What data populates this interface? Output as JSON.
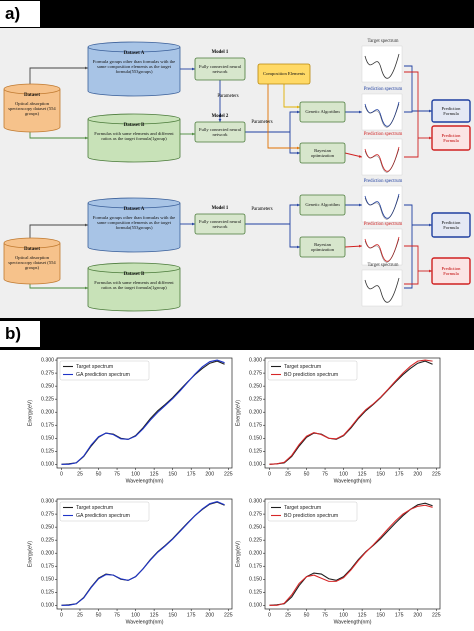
{
  "panel_labels": [
    "a)",
    "b)"
  ],
  "diagram": {
    "nodes": [
      {
        "title": "Dataset",
        "text": "Optical absorption spectroscopy dataset (554 groups)"
      },
      {
        "title": "Dataset A",
        "text": "Formula groups other than formulas with the same composition elements as the target formula(553groups)"
      },
      {
        "title": "Dataset B",
        "text": "Formulas with same elements and different ratios as the target formula(1group)"
      },
      {
        "title": "Model 1",
        "text": "Fully connected neural network"
      },
      {
        "title": "Model 2",
        "text": "Fully connected neural network"
      },
      {
        "text": "Composition Elements"
      },
      {
        "text": "Genetic Algorithm"
      },
      {
        "text": "Bayesian optimization"
      },
      {
        "text": "Prediction Formula"
      },
      {
        "text": "Prediction Formula"
      },
      {
        "title": "Dataset",
        "text": "Optical absorption spectroscopy dataset (554 groups)"
      },
      {
        "title": "Dataset A",
        "text": "Formula groups other than formulas with the same composition elements as the target formula(553groups)"
      },
      {
        "title": "Dataset B",
        "text": "Formulas with same elements and different ratios as the target formula(1group)"
      },
      {
        "title": "Model 1",
        "text": "Fully connected neural network"
      },
      {
        "text": "Genetic Algorithm"
      },
      {
        "text": "Bayesian optimization"
      },
      {
        "text": "Prediction Formula"
      },
      {
        "text": "Prediction Formula"
      }
    ],
    "edge_labels": [
      "Parameters",
      "Parameters",
      "Parameters"
    ],
    "spectra": [
      "Target spectrum",
      "Prediction spectrum",
      "Prediction spectrum",
      "Prediction spectrum",
      "Prediction spectrum",
      "Target spectrum"
    ]
  },
  "chart_data": [
    {
      "type": "line",
      "xlabel": "Wavelength(nm)",
      "ylabel": "Energy(eV)",
      "legend": "upper left",
      "x": [
        0,
        10,
        20,
        30,
        40,
        50,
        60,
        70,
        80,
        90,
        100,
        110,
        120,
        130,
        140,
        150,
        160,
        170,
        180,
        190,
        200,
        210,
        220
      ],
      "series": [
        {
          "name": "Target spectrum",
          "color": "#1f1f1f",
          "values": [
            0.1,
            0.101,
            0.103,
            0.115,
            0.135,
            0.152,
            0.16,
            0.158,
            0.15,
            0.148,
            0.155,
            0.17,
            0.188,
            0.203,
            0.215,
            0.228,
            0.243,
            0.258,
            0.272,
            0.284,
            0.294,
            0.298,
            0.292
          ]
        },
        {
          "name": "GA prediction spectrum",
          "color": "#1f35c8",
          "values": [
            0.1,
            0.1,
            0.103,
            0.116,
            0.137,
            0.153,
            0.16,
            0.157,
            0.149,
            0.148,
            0.154,
            0.168,
            0.185,
            0.2,
            0.213,
            0.226,
            0.241,
            0.257,
            0.273,
            0.287,
            0.297,
            0.3,
            0.295
          ]
        }
      ],
      "xlim": [
        -6,
        230
      ],
      "ylim": [
        0.093,
        0.304
      ],
      "xticks": [
        0,
        25,
        50,
        75,
        100,
        125,
        150,
        175,
        200,
        225
      ],
      "yticks": [
        {
          "value": 0.1,
          "label": "0.100"
        },
        0.125,
        {
          "value": 0.15,
          "label": "0.150"
        },
        0.175,
        {
          "value": 0.2,
          "label": "0.200"
        },
        0.225,
        {
          "value": 0.25,
          "label": "0.250"
        },
        0.275,
        {
          "value": 0.3,
          "label": "0.300"
        }
      ]
    },
    {
      "type": "line",
      "xlabel": "Wavelength(nm)",
      "ylabel": "Energy(eV)",
      "legend": "upper left",
      "x": [
        0,
        10,
        20,
        30,
        40,
        50,
        60,
        70,
        80,
        90,
        100,
        110,
        120,
        130,
        140,
        150,
        160,
        170,
        180,
        190,
        200,
        210,
        220
      ],
      "series": [
        {
          "name": "Target spectrum",
          "color": "#1f1f1f",
          "values": [
            0.1,
            0.101,
            0.103,
            0.115,
            0.135,
            0.152,
            0.16,
            0.158,
            0.15,
            0.148,
            0.155,
            0.17,
            0.188,
            0.203,
            0.215,
            0.228,
            0.243,
            0.258,
            0.272,
            0.284,
            0.294,
            0.298,
            0.292
          ]
        },
        {
          "name": "BO prediction spectrum",
          "color": "#d62728",
          "values": [
            0.1,
            0.101,
            0.104,
            0.117,
            0.138,
            0.154,
            0.161,
            0.157,
            0.15,
            0.149,
            0.156,
            0.172,
            0.19,
            0.205,
            0.216,
            0.229,
            0.244,
            0.26,
            0.275,
            0.288,
            0.298,
            0.3,
            0.298
          ]
        }
      ],
      "xlim": [
        -6,
        230
      ],
      "ylim": [
        0.093,
        0.304
      ],
      "xticks": [
        0,
        25,
        50,
        75,
        100,
        125,
        150,
        175,
        200,
        225
      ],
      "yticks": [
        {
          "value": 0.1,
          "label": "0.100"
        },
        0.125,
        {
          "value": 0.15,
          "label": "0.150"
        },
        0.175,
        {
          "value": 0.2,
          "label": "0.200"
        },
        0.225,
        {
          "value": 0.25,
          "label": "0.250"
        },
        0.275,
        {
          "value": 0.3,
          "label": "0.300"
        }
      ]
    },
    {
      "type": "line",
      "xlabel": "Wavelength(nm)",
      "ylabel": "Energy(eV)",
      "legend": "upper left",
      "x": [
        0,
        10,
        20,
        30,
        40,
        50,
        60,
        70,
        80,
        90,
        100,
        110,
        120,
        130,
        140,
        150,
        160,
        170,
        180,
        190,
        200,
        210,
        220
      ],
      "series": [
        {
          "name": "Target spectrum",
          "color": "#1f1f1f",
          "values": [
            0.1,
            0.101,
            0.103,
            0.115,
            0.135,
            0.152,
            0.16,
            0.158,
            0.15,
            0.148,
            0.155,
            0.17,
            0.188,
            0.203,
            0.215,
            0.228,
            0.243,
            0.258,
            0.272,
            0.284,
            0.294,
            0.298,
            0.292
          ]
        },
        {
          "name": "GA prediction spectrum",
          "color": "#1f35c8",
          "values": [
            0.1,
            0.1,
            0.103,
            0.114,
            0.134,
            0.151,
            0.159,
            0.158,
            0.151,
            0.148,
            0.155,
            0.17,
            0.187,
            0.202,
            0.214,
            0.227,
            0.242,
            0.257,
            0.272,
            0.285,
            0.295,
            0.299,
            0.293
          ]
        }
      ],
      "xlim": [
        -6,
        230
      ],
      "ylim": [
        0.093,
        0.304
      ],
      "xticks": [
        0,
        25,
        50,
        75,
        100,
        125,
        150,
        175,
        200,
        225
      ],
      "yticks": [
        {
          "value": 0.1,
          "label": "0.100"
        },
        0.125,
        {
          "value": 0.15,
          "label": "0.150"
        },
        0.175,
        {
          "value": 0.2,
          "label": "0.200"
        },
        0.225,
        {
          "value": 0.25,
          "label": "0.250"
        },
        0.275,
        {
          "value": 0.3,
          "label": "0.300"
        }
      ]
    },
    {
      "type": "line",
      "xlabel": "Wavelength(nm)",
      "ylabel": "Energy(eV)",
      "legend": "upper left",
      "x": [
        0,
        10,
        20,
        30,
        40,
        50,
        60,
        70,
        80,
        90,
        100,
        110,
        120,
        130,
        140,
        150,
        160,
        170,
        180,
        190,
        200,
        210,
        220
      ],
      "series": [
        {
          "name": "Target spectrum",
          "color": "#1f1f1f",
          "values": [
            0.1,
            0.101,
            0.103,
            0.116,
            0.138,
            0.155,
            0.162,
            0.16,
            0.151,
            0.148,
            0.155,
            0.17,
            0.188,
            0.203,
            0.215,
            0.228,
            0.243,
            0.258,
            0.272,
            0.284,
            0.293,
            0.296,
            0.291
          ]
        },
        {
          "name": "BO prediction spectrum",
          "color": "#d62728",
          "values": [
            0.1,
            0.1,
            0.104,
            0.12,
            0.142,
            0.155,
            0.158,
            0.152,
            0.146,
            0.146,
            0.153,
            0.168,
            0.186,
            0.202,
            0.216,
            0.231,
            0.247,
            0.262,
            0.275,
            0.284,
            0.29,
            0.292,
            0.288
          ]
        }
      ],
      "xlim": [
        -6,
        230
      ],
      "ylim": [
        0.093,
        0.304
      ],
      "xticks": [
        0,
        25,
        50,
        75,
        100,
        125,
        150,
        175,
        200,
        225
      ],
      "yticks": [
        {
          "value": 0.1,
          "label": "0.100"
        },
        0.125,
        {
          "value": 0.15,
          "label": "0.150"
        },
        0.175,
        {
          "value": 0.2,
          "label": "0.200"
        },
        0.225,
        {
          "value": 0.25,
          "label": "0.250"
        },
        0.275,
        {
          "value": 0.3,
          "label": "0.300"
        }
      ]
    }
  ]
}
